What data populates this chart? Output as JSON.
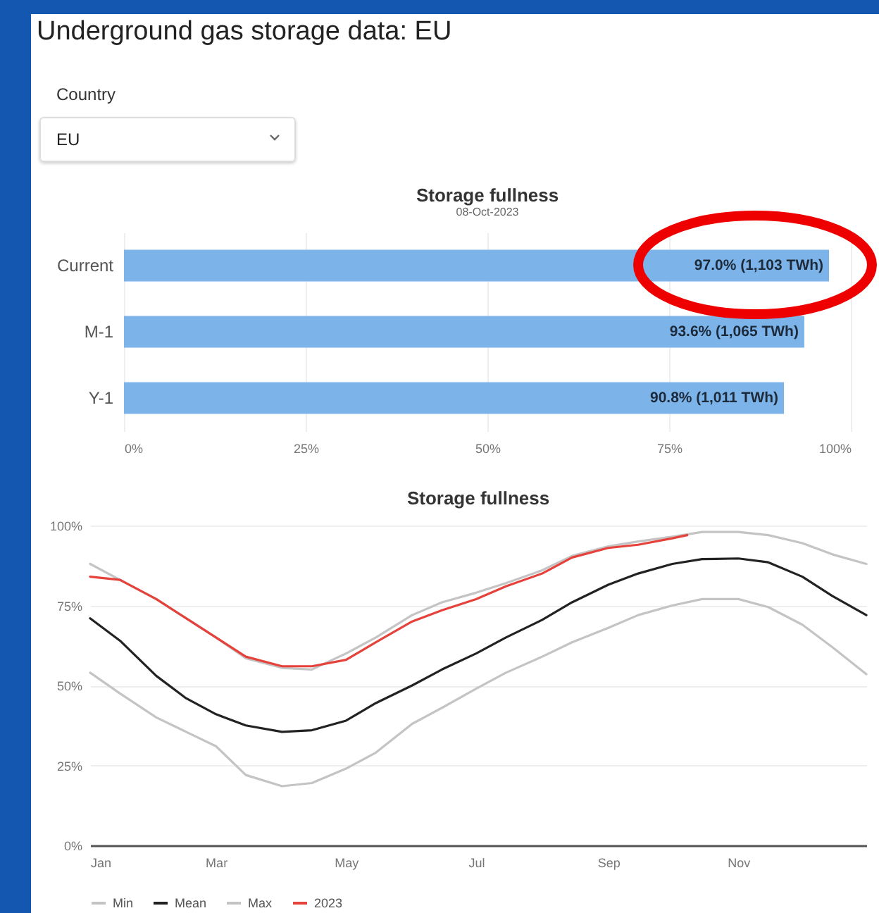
{
  "chart_data": [
    {
      "type": "other",
      "title": "Underground gas storage data: EU",
      "annotations": [
        "Country",
        "EU"
      ]
    },
    {
      "type": "bar",
      "orientation": "horizontal",
      "title": "Storage fullness",
      "subtitle": "08-Oct-2023",
      "categories": [
        "Current",
        "M-1",
        "Y-1"
      ],
      "values": [
        97.0,
        93.6,
        90.8
      ],
      "color": "#7cb4ea",
      "value_labels": [
        "97.0% (1,103 TWh)",
        "93.6% (1,065 TWh)",
        "90.8% (1,011 TWh)"
      ],
      "xlim": [
        0,
        100
      ],
      "xticks": [
        {
          "value": 0,
          "label": "0%"
        },
        {
          "value": 25,
          "label": "25%"
        },
        {
          "value": 50,
          "label": "50%"
        },
        {
          "value": 75,
          "label": "75%"
        },
        {
          "value": 100,
          "label": "100%"
        }
      ],
      "grid": "x"
    },
    {
      "type": "line",
      "title": "Storage fullness",
      "x": [
        "--01-01",
        "--01-15",
        "--02-01",
        "--02-15",
        "--03-01",
        "--03-15",
        "--04-01",
        "--04-15",
        "--05-01",
        "--05-15",
        "--06-01",
        "--06-15",
        "--07-01",
        "--07-15",
        "--08-01",
        "--08-15",
        "--09-01",
        "--09-15",
        "--10-01",
        "--10-15",
        "--11-01",
        "--11-15",
        "--12-01",
        "--12-15",
        "--12-31"
      ],
      "series": [
        {
          "name": "Min",
          "color": "#c4c4c4",
          "values": [
            54,
            47.5,
            40,
            35.5,
            31,
            22,
            18.5,
            19.5,
            24,
            29,
            38,
            43,
            49,
            54,
            59,
            63.5,
            68,
            72,
            75,
            77,
            77,
            74.5,
            69,
            62,
            53.5
          ]
        },
        {
          "name": "Mean",
          "color": "#222222",
          "values": [
            71,
            64,
            53,
            46,
            41,
            37.5,
            35.5,
            36,
            39,
            44.5,
            50,
            55,
            60,
            65,
            70.5,
            76,
            81.5,
            85,
            88,
            89.5,
            89.7,
            88.5,
            84,
            78,
            72
          ]
        },
        {
          "name": "Max",
          "color": "#c4c4c4",
          "values": [
            88,
            83,
            77,
            71,
            65,
            58.5,
            55.5,
            55,
            60,
            65,
            72,
            76,
            79,
            82,
            86,
            90.5,
            93.5,
            95,
            96.5,
            98,
            98,
            97,
            94.5,
            91,
            88
          ]
        },
        {
          "name": "2023",
          "color": "#e5423b",
          "x": [
            "--01-01",
            "--01-15",
            "--02-01",
            "--02-15",
            "--03-01",
            "--03-15",
            "--04-01",
            "--04-15",
            "--05-01",
            "--05-15",
            "--06-01",
            "--06-15",
            "--07-01",
            "--07-15",
            "--08-01",
            "--08-15",
            "--09-01",
            "--09-15",
            "--10-01",
            "--10-08"
          ],
          "values": [
            84,
            83,
            77,
            71,
            65,
            59,
            56,
            56,
            58,
            63.5,
            70,
            73.5,
            77,
            81,
            85,
            90,
            93,
            94,
            96,
            97
          ]
        }
      ],
      "xlim": [
        "--01-01",
        "--12-31"
      ],
      "xticks": [
        {
          "value": "--01-01",
          "label": "Jan"
        },
        {
          "value": "--03-01",
          "label": "Mar"
        },
        {
          "value": "--05-01",
          "label": "May"
        },
        {
          "value": "--07-01",
          "label": "Jul"
        },
        {
          "value": "--09-01",
          "label": "Sep"
        },
        {
          "value": "--11-01",
          "label": "Nov"
        }
      ],
      "ylim": [
        0,
        100
      ],
      "yticks": [
        {
          "value": 0,
          "label": "0%"
        },
        {
          "value": 25,
          "label": "25%"
        },
        {
          "value": 50,
          "label": "50%"
        },
        {
          "value": 75,
          "label": "75%"
        },
        {
          "value": 100,
          "label": "100%"
        }
      ],
      "grid": "y",
      "legend": "bottom",
      "line_style": "solid"
    }
  ]
}
